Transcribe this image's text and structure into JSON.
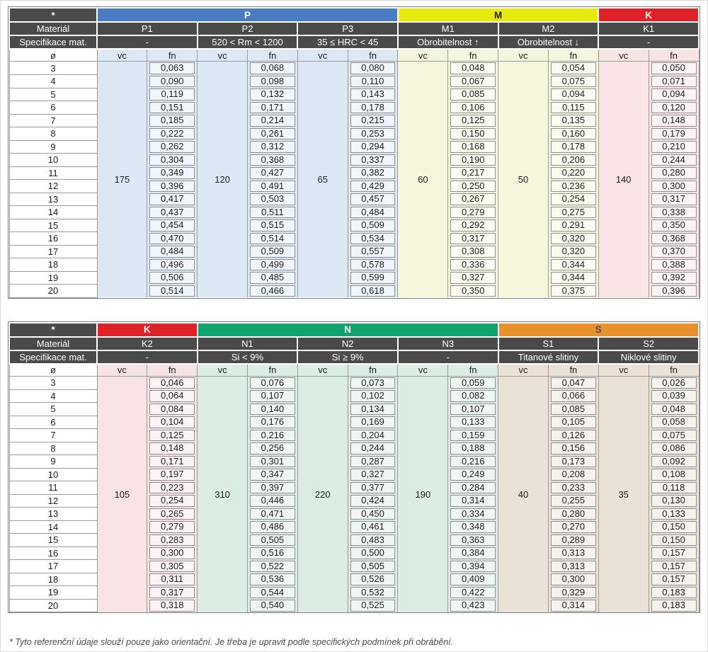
{
  "labels": {
    "corner": "*",
    "material": "Materiál",
    "spec": "Specifikace mat.",
    "diameter": "ø",
    "vc": "vc",
    "fn": "fn"
  },
  "colors": {
    "header_dark": "#4a4a4a",
    "cell_border": "#9a9a9a"
  },
  "diameters": [
    "3",
    "4",
    "5",
    "6",
    "7",
    "8",
    "9",
    "10",
    "11",
    "12",
    "13",
    "14",
    "15",
    "16",
    "17",
    "18",
    "19",
    "20"
  ],
  "tables": [
    {
      "name": "parameters-table-1",
      "groups": [
        {
          "label": "P",
          "color": "#4a7cc4",
          "label_color": "#ffffff",
          "tint": "#dce9f5",
          "columns": [
            {
              "name": "P1",
              "spec": "-",
              "vc": "175",
              "fn": [
                "0,063",
                "0,090",
                "0,119",
                "0,151",
                "0,185",
                "0,222",
                "0,262",
                "0,304",
                "0,349",
                "0,396",
                "0,417",
                "0,437",
                "0,454",
                "0,470",
                "0,484",
                "0,496",
                "0,506",
                "0,514"
              ]
            },
            {
              "name": "P2",
              "spec": "520 < Rm < 1200",
              "vc": "120",
              "fn": [
                "0,068",
                "0,098",
                "0,132",
                "0,171",
                "0,214",
                "0,261",
                "0,312",
                "0,368",
                "0,427",
                "0,491",
                "0,503",
                "0,511",
                "0,515",
                "0,514",
                "0,509",
                "0,499",
                "0,485",
                "0,466"
              ]
            },
            {
              "name": "P3",
              "spec": "35 ≤ HRC < 45",
              "vc": "65",
              "fn": [
                "0,080",
                "0,110",
                "0,143",
                "0,178",
                "0,215",
                "0,253",
                "0,294",
                "0,337",
                "0,382",
                "0,429",
                "0,457",
                "0,484",
                "0,509",
                "0,534",
                "0,557",
                "0,578",
                "0,599",
                "0,618"
              ]
            }
          ]
        },
        {
          "label": "M",
          "color": "#e9e910",
          "label_color": "#1a1a1a",
          "tint": "#f6f6dd",
          "columns": [
            {
              "name": "M1",
              "spec": "Obrobitelnost ↑",
              "vc": "60",
              "fn": [
                "0,048",
                "0,067",
                "0,085",
                "0,106",
                "0,125",
                "0,150",
                "0,168",
                "0,190",
                "0,217",
                "0,250",
                "0,267",
                "0,279",
                "0,292",
                "0,317",
                "0,308",
                "0,336",
                "0,327",
                "0,350"
              ]
            },
            {
              "name": "M2",
              "spec": "Obrobitelnost ↓",
              "vc": "50",
              "fn": [
                "0,054",
                "0,075",
                "0,094",
                "0,115",
                "0,135",
                "0,160",
                "0,178",
                "0,206",
                "0,220",
                "0,236",
                "0,254",
                "0,275",
                "0,291",
                "0,320",
                "0,320",
                "0,344",
                "0,344",
                "0,375"
              ]
            }
          ]
        },
        {
          "label": "K",
          "color": "#e02127",
          "label_color": "#ffffff",
          "tint": "#f8e4e5",
          "columns": [
            {
              "name": "K1",
              "spec": "-",
              "vc": "140",
              "fn": [
                "0,050",
                "0,071",
                "0,094",
                "0,120",
                "0,148",
                "0,179",
                "0,210",
                "0,244",
                "0,280",
                "0,300",
                "0,317",
                "0,338",
                "0,350",
                "0,368",
                "0,370",
                "0,388",
                "0,392",
                "0,396"
              ]
            }
          ]
        }
      ]
    },
    {
      "name": "parameters-table-2",
      "groups": [
        {
          "label": "K",
          "color": "#e02127",
          "label_color": "#ffffff",
          "tint": "#f8e4e5",
          "columns": [
            {
              "name": "K2",
              "spec": "-",
              "vc": "105",
              "fn": [
                "0,046",
                "0,064",
                "0,084",
                "0,104",
                "0,125",
                "0,148",
                "0,171",
                "0,197",
                "0,223",
                "0,254",
                "0,265",
                "0,279",
                "0,283",
                "0,300",
                "0,305",
                "0,311",
                "0,317",
                "0,318"
              ]
            }
          ]
        },
        {
          "label": "N",
          "color": "#10a36d",
          "label_color": "#ffffff",
          "tint": "#dcede3",
          "columns": [
            {
              "name": "N1",
              "spec": "Si < 9%",
              "vc": "310",
              "fn": [
                "0,076",
                "0,107",
                "0,140",
                "0,176",
                "0,216",
                "0,256",
                "0,301",
                "0,347",
                "0,397",
                "0,446",
                "0,471",
                "0,486",
                "0,505",
                "0,516",
                "0,522",
                "0,536",
                "0,544",
                "0,540"
              ]
            },
            {
              "name": "N2",
              "spec": "Si ≥ 9%",
              "vc": "220",
              "fn": [
                "0,073",
                "0,102",
                "0,134",
                "0,169",
                "0,204",
                "0,244",
                "0,287",
                "0,327",
                "0,377",
                "0,424",
                "0,450",
                "0,461",
                "0,483",
                "0,500",
                "0,505",
                "0,526",
                "0,532",
                "0,525"
              ]
            },
            {
              "name": "N3",
              "spec": "-",
              "vc": "190",
              "fn": [
                "0,059",
                "0,082",
                "0,107",
                "0,133",
                "0,159",
                "0,188",
                "0,216",
                "0,249",
                "0,284",
                "0,314",
                "0,334",
                "0,348",
                "0,363",
                "0,384",
                "0,394",
                "0,409",
                "0,422",
                "0,423"
              ]
            }
          ]
        },
        {
          "label": "S",
          "color": "#e8912c",
          "label_color": "#4f4f4f",
          "tint": "#eae2d7",
          "columns": [
            {
              "name": "S1",
              "spec": "Titanové slitiny",
              "vc": "40",
              "fn": [
                "0,047",
                "0,066",
                "0,085",
                "0,105",
                "0,126",
                "0,156",
                "0,173",
                "0,208",
                "0,233",
                "0,255",
                "0,280",
                "0,270",
                "0,289",
                "0,313",
                "0,313",
                "0,300",
                "0,329",
                "0,314"
              ]
            },
            {
              "name": "S2",
              "spec": "Niklové slitiny",
              "vc": "35",
              "fn": [
                "0,026",
                "0,039",
                "0,048",
                "0,058",
                "0,075",
                "0,086",
                "0,092",
                "0,108",
                "0,118",
                "0,130",
                "0,133",
                "0,150",
                "0,150",
                "0,157",
                "0,157",
                "0,157",
                "0,183",
                "0,183"
              ]
            }
          ]
        }
      ]
    }
  ],
  "page": {
    "footnote": "* Tyto referenční údaje slouží pouze jako orientační. Je třeba je upravit podle specifických podmínek při obrábění."
  }
}
